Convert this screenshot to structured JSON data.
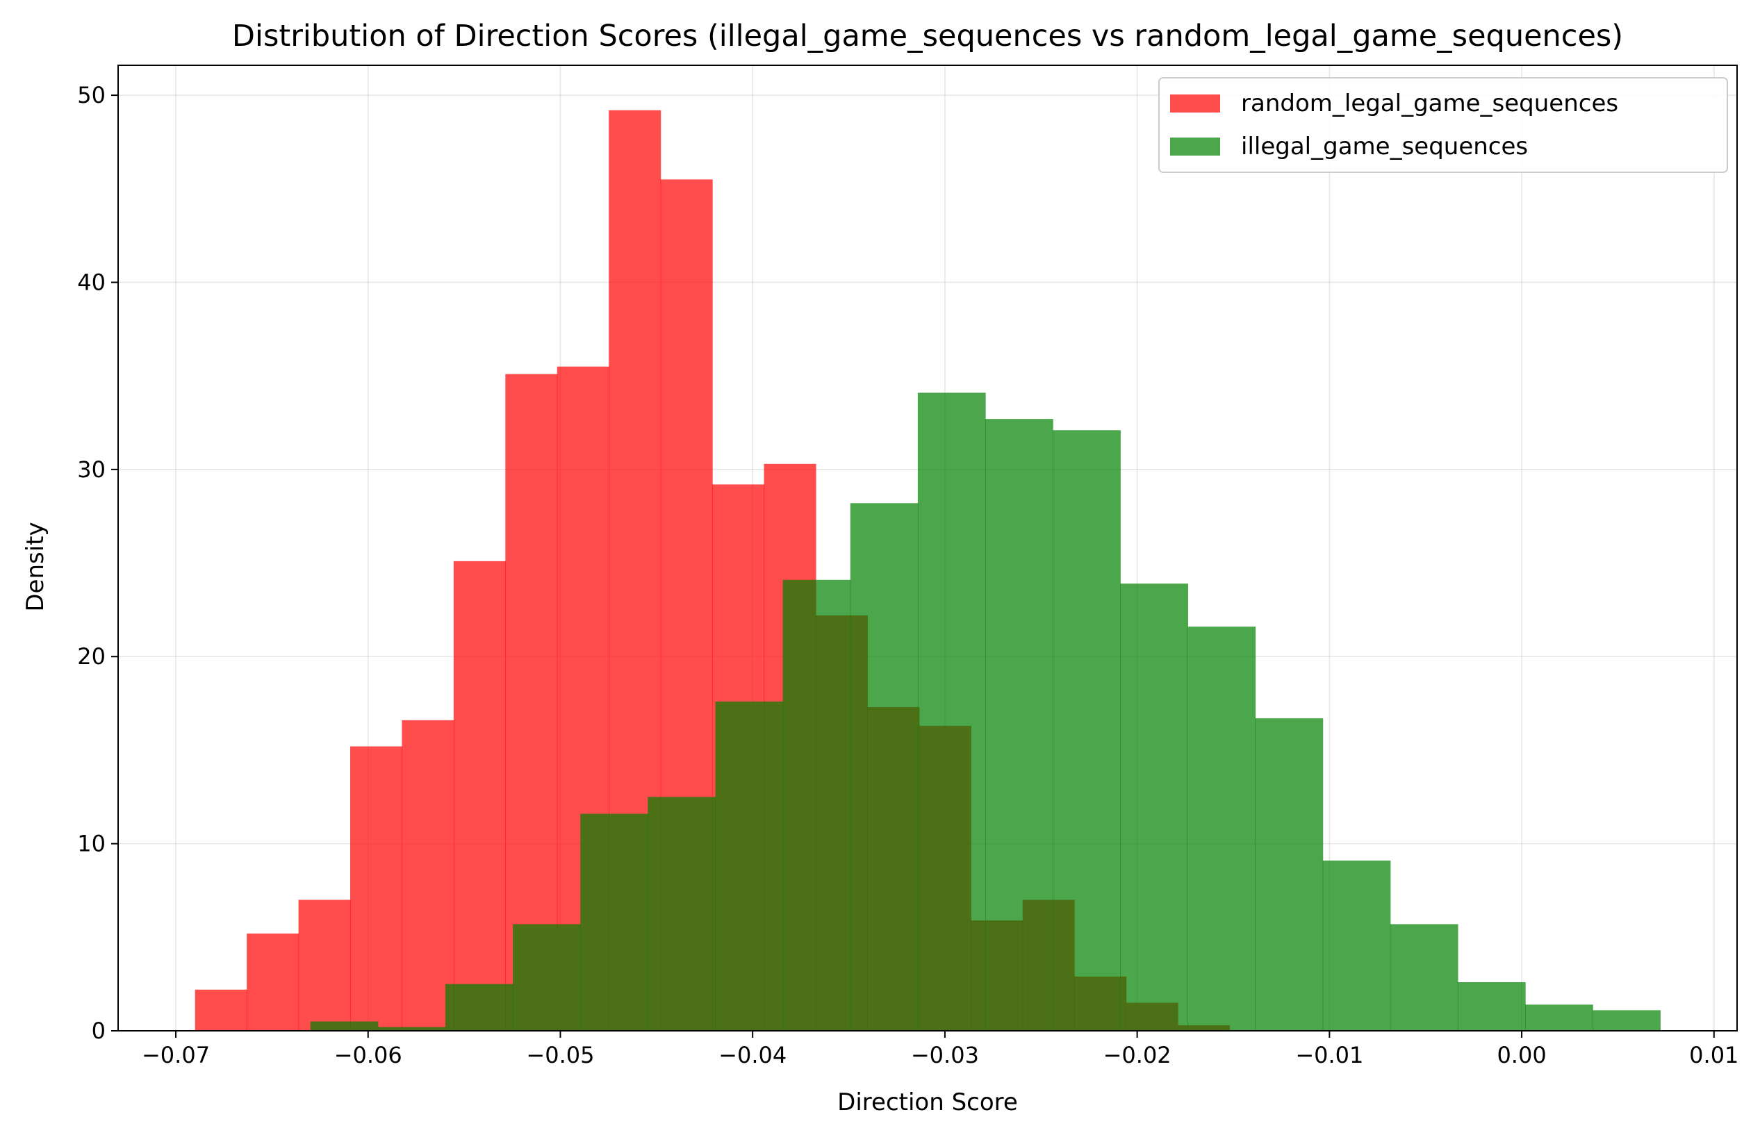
{
  "chart_data": {
    "type": "bar",
    "title": "Distribution of Direction Scores (illegal_game_sequences vs random_legal_game_sequences)",
    "xlabel": "Direction Score",
    "ylabel": "Density",
    "xlim": [
      -0.073,
      0.0112
    ],
    "ylim": [
      0,
      51.6
    ],
    "xticks": [
      -0.07,
      -0.06,
      -0.05,
      -0.04,
      -0.03,
      -0.02,
      -0.01,
      0.0,
      0.01
    ],
    "xtick_labels": [
      "−0.07",
      "−0.06",
      "−0.05",
      "−0.04",
      "−0.03",
      "−0.02",
      "−0.01",
      "0.00",
      "0.01"
    ],
    "yticks": [
      0,
      10,
      20,
      30,
      40,
      50
    ],
    "ytick_labels": [
      "0",
      "10",
      "20",
      "30",
      "40",
      "50"
    ],
    "grid": true,
    "legend_position": "top-right",
    "series": [
      {
        "name": "random_legal_game_sequences",
        "color": "#ff0000",
        "opacity": 0.7,
        "bin_edges": [
          -0.069,
          -0.06631,
          -0.06362,
          -0.06093,
          -0.05824,
          -0.05555,
          -0.05286,
          -0.05017,
          -0.04748,
          -0.04479,
          -0.0421,
          -0.03941,
          -0.03672,
          -0.03403,
          -0.03134,
          -0.02865,
          -0.02596,
          -0.02327,
          -0.02058,
          -0.01789,
          -0.0152
        ],
        "values": [
          2.2,
          5.2,
          7.0,
          15.2,
          16.6,
          25.1,
          35.1,
          35.5,
          49.2,
          45.5,
          29.2,
          30.3,
          22.2,
          17.3,
          16.3,
          5.9,
          7.0,
          2.9,
          1.5,
          0.3
        ]
      },
      {
        "name": "illegal_game_sequences",
        "color": "#008000",
        "opacity": 0.7,
        "bin_edges": [
          -0.063,
          -0.05949,
          -0.05598,
          -0.05247,
          -0.04896,
          -0.04545,
          -0.04194,
          -0.03843,
          -0.03492,
          -0.03141,
          -0.0279,
          -0.02439,
          -0.02088,
          -0.01737,
          -0.01386,
          -0.01035,
          -0.00684,
          -0.00333,
          0.00018,
          0.00369,
          0.0072
        ],
        "values": [
          0.5,
          0.2,
          2.5,
          5.7,
          11.6,
          12.5,
          17.6,
          24.1,
          28.2,
          34.1,
          32.7,
          32.1,
          23.9,
          21.6,
          16.7,
          9.1,
          5.7,
          2.6,
          1.4,
          1.1
        ]
      }
    ]
  }
}
